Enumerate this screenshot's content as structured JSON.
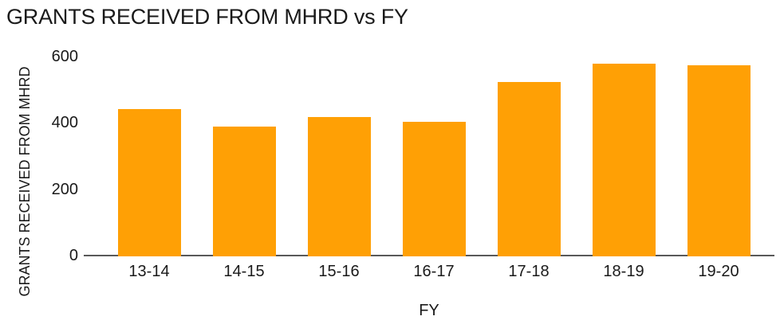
{
  "chart_data": {
    "type": "bar",
    "title": "GRANTS RECEIVED FROM MHRD vs FY",
    "xlabel": "FY",
    "ylabel": "GRANTS RECEIVED FROM MHRD",
    "categories": [
      "13-14",
      "14-15",
      "15-16",
      "16-17",
      "17-18",
      "18-19",
      "19-20"
    ],
    "values": [
      445,
      390,
      420,
      405,
      525,
      580,
      575
    ],
    "ylim": [
      0,
      600
    ],
    "yticks": [
      0,
      200,
      400,
      600
    ],
    "grid": false,
    "legend": false,
    "colors": {
      "bar": "#FFA005",
      "axis_line": "#595959",
      "text": "#1A1A1A",
      "background": "#FFFFFF"
    }
  }
}
